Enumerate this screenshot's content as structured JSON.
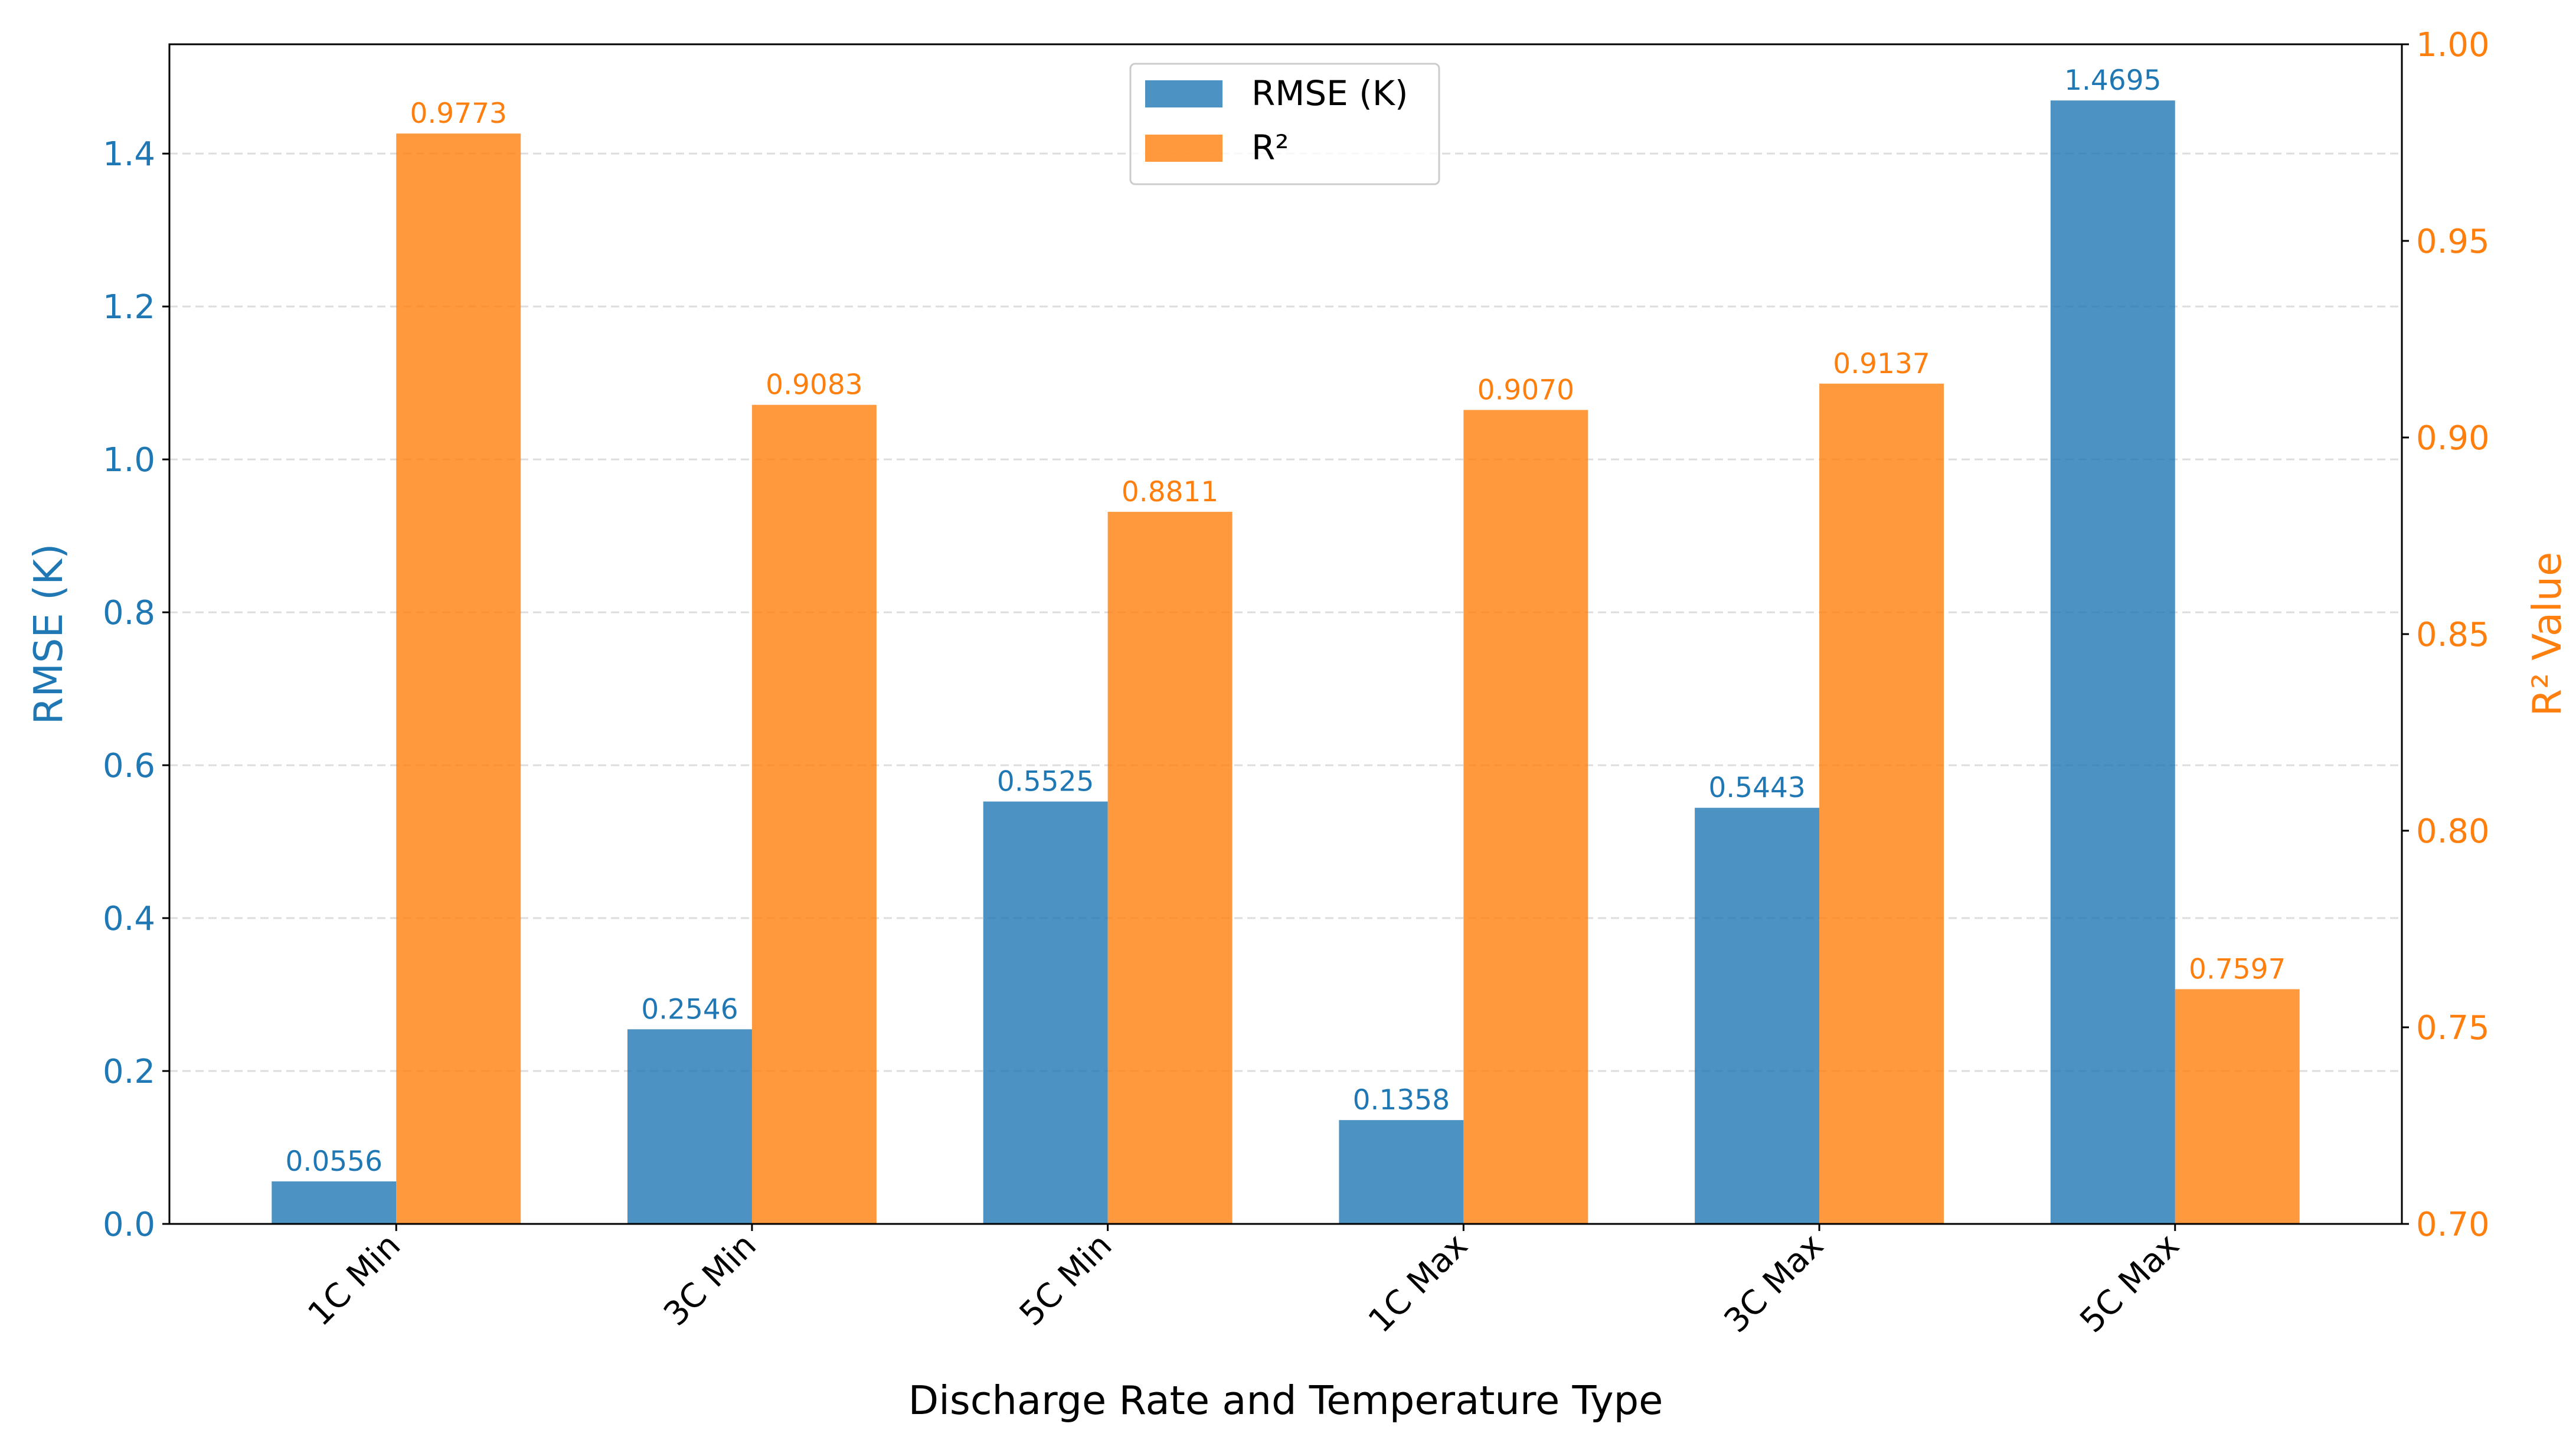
{
  "chart_data": {
    "type": "bar",
    "xlabel": "Discharge Rate and Temperature Type",
    "ylabel": "RMSE (K)",
    "ylabel_right": "R² Value",
    "categories": [
      "1C Min",
      "3C Min",
      "5C Min",
      "1C Max",
      "3C Max",
      "5C Max"
    ],
    "series": [
      {
        "name": "RMSE (K)",
        "axis": "left",
        "color": "#1f77b4",
        "values": [
          0.0556,
          0.2546,
          0.5525,
          0.1358,
          0.5443,
          1.4695
        ],
        "labels": [
          "0.0556",
          "0.2546",
          "0.5525",
          "0.1358",
          "0.5443",
          "1.4695"
        ]
      },
      {
        "name": "R²",
        "axis": "right",
        "color": "#ff7f0e",
        "values": [
          0.9773,
          0.9083,
          0.8811,
          0.907,
          0.9137,
          0.7597
        ],
        "labels": [
          "0.9773",
          "0.9083",
          "0.8811",
          "0.9070",
          "0.9137",
          "0.7597"
        ]
      }
    ],
    "ylim": [
      0,
      1.543
    ],
    "ylim_right": [
      0.7,
      1.0
    ],
    "yticks": [
      "0.0",
      "0.2",
      "0.4",
      "0.6",
      "0.8",
      "1.0",
      "1.2",
      "1.4"
    ],
    "yticks_right": [
      "0.70",
      "0.75",
      "0.80",
      "0.85",
      "0.90",
      "0.95",
      "1.00"
    ],
    "grid": "horizontal dashed (left axis)",
    "legend": "top-center"
  }
}
